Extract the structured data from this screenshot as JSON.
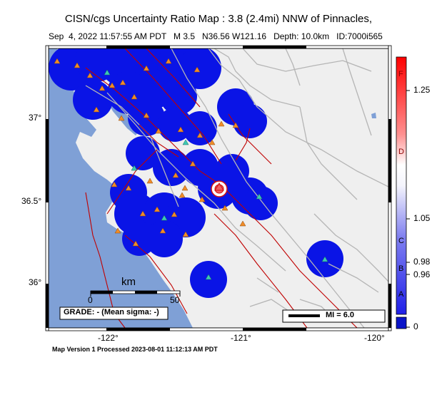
{
  "title": "CISN/cgs Uncertainty Ratio Map : 3.8 (2.4mi) NNW of Pinnacles,",
  "subtitle": "Sep  4, 2022 11:57:55 AM PDT   M 3.5   N36.56 W121.16   Depth: 10.0km   ID:7000i565",
  "footer": "Map Version 1 Processed 2023-08-01 11:12:13 AM PDT",
  "axes": {
    "lat_labels": [
      "37°",
      "36.5°",
      "36°"
    ],
    "lon_labels": [
      "-122°",
      "-121°",
      "-120°"
    ]
  },
  "scale_bar": {
    "unit": "km",
    "ticks": [
      "0",
      "50"
    ]
  },
  "grade_text": "GRADE: - (Mean sigma: -)",
  "mi_legend": "MI = 6.0",
  "colorbar": {
    "letters": [
      "F",
      "D",
      "C",
      "B",
      "A"
    ],
    "values": [
      "1.25",
      "1.05",
      "0.98",
      "0.96",
      "0"
    ]
  },
  "colors": {
    "ocean": "#7fa0d6",
    "land": "#efefef",
    "coverage": "#0a14e6",
    "fault": "#c00000",
    "road": "#b5b5b5",
    "station": "#f08c28",
    "station_alt": "#3cc8b4"
  }
}
